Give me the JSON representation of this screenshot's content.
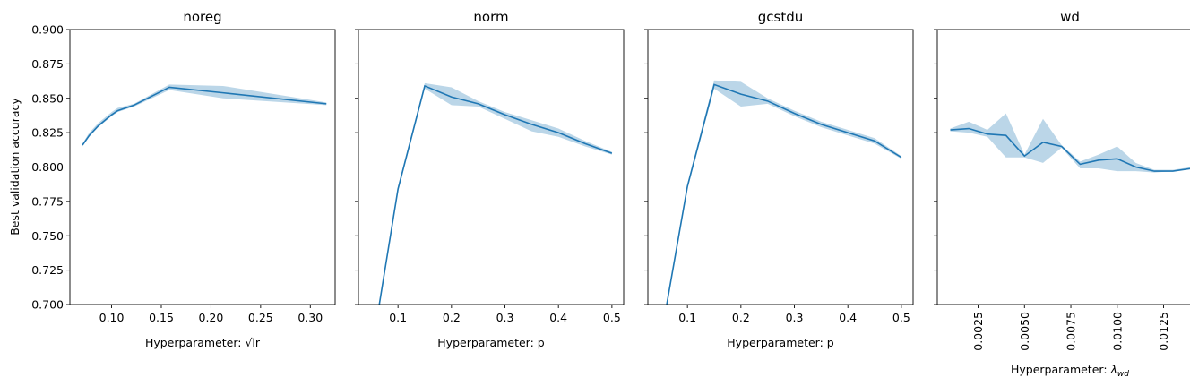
{
  "chart_data": {
    "type": "line",
    "shared_y": {
      "label": "Best validation accuracy",
      "ylim": [
        0.7,
        0.9
      ],
      "ticks": [
        "0.700",
        "0.725",
        "0.750",
        "0.775",
        "0.800",
        "0.825",
        "0.850",
        "0.875",
        "0.900"
      ]
    },
    "line_color": "#1f77b4",
    "band_color": "#1f77b4",
    "grid": false,
    "panels": [
      {
        "title": "noreg",
        "xlabel_prefix": "Hyperparameter: ",
        "xlabel_symbol": "√lr",
        "xlim": [
          0.058,
          0.325
        ],
        "x_ticks": [
          "0.10",
          "0.15",
          "0.20",
          "0.25",
          "0.30"
        ],
        "x": [
          0.0707,
          0.0775,
          0.0866,
          0.1,
          0.1061,
          0.1225,
          0.1581,
          0.2121,
          0.3162
        ],
        "mean": [
          0.816,
          0.823,
          0.83,
          0.838,
          0.841,
          0.845,
          0.858,
          0.854,
          0.846
        ],
        "lower": [
          0.815,
          0.822,
          0.829,
          0.837,
          0.84,
          0.844,
          0.856,
          0.85,
          0.845
        ],
        "upper": [
          0.817,
          0.825,
          0.832,
          0.84,
          0.843,
          0.846,
          0.86,
          0.859,
          0.847
        ]
      },
      {
        "title": "norm",
        "xlabel_prefix": "Hyperparameter: ",
        "xlabel_symbol": "p",
        "xlim": [
          0.026,
          0.522
        ],
        "x_ticks": [
          "0.1",
          "0.2",
          "0.3",
          "0.4",
          "0.5"
        ],
        "x": [
          0.05,
          0.1,
          0.15,
          0.2,
          0.25,
          0.3,
          0.35,
          0.4,
          0.45,
          0.5
        ],
        "mean": [
          0.664,
          0.784,
          0.859,
          0.851,
          0.846,
          0.838,
          0.831,
          0.825,
          0.817,
          0.81
        ],
        "lower": [
          0.662,
          0.782,
          0.857,
          0.845,
          0.844,
          0.835,
          0.826,
          0.822,
          0.815,
          0.809
        ],
        "upper": [
          0.666,
          0.786,
          0.861,
          0.858,
          0.848,
          0.84,
          0.834,
          0.828,
          0.819,
          0.811
        ]
      },
      {
        "title": "gcstdu",
        "xlabel_prefix": "Hyperparameter: ",
        "xlabel_symbol": "p",
        "xlim": [
          0.026,
          0.522
        ],
        "x_ticks": [
          "0.1",
          "0.2",
          "0.3",
          "0.4",
          "0.5"
        ],
        "x": [
          0.05,
          0.1,
          0.15,
          0.2,
          0.25,
          0.3,
          0.35,
          0.4,
          0.45,
          0.5
        ],
        "mean": [
          0.675,
          0.786,
          0.86,
          0.853,
          0.848,
          0.839,
          0.831,
          0.825,
          0.819,
          0.807
        ],
        "lower": [
          0.673,
          0.784,
          0.857,
          0.844,
          0.846,
          0.837,
          0.829,
          0.823,
          0.817,
          0.806
        ],
        "upper": [
          0.677,
          0.788,
          0.863,
          0.862,
          0.85,
          0.841,
          0.833,
          0.827,
          0.821,
          0.808
        ]
      },
      {
        "title": "wd",
        "xlabel_prefix": "Hyperparameter: ",
        "xlabel_symbol": "λ",
        "xlabel_subscript": "wd",
        "xlim": [
          0.0003,
          0.0146
        ],
        "x_ticks": [
          "0.0025",
          "0.0050",
          "0.0075",
          "0.0100",
          "0.0125"
        ],
        "x_tick_rotation": -90,
        "x": [
          0.001,
          0.002,
          0.003,
          0.004,
          0.005,
          0.006,
          0.007,
          0.008,
          0.009,
          0.01,
          0.011,
          0.012,
          0.013,
          0.014
        ],
        "mean": [
          0.827,
          0.828,
          0.824,
          0.823,
          0.808,
          0.818,
          0.815,
          0.802,
          0.805,
          0.806,
          0.8,
          0.797,
          0.797,
          0.799
        ],
        "lower": [
          0.826,
          0.825,
          0.822,
          0.807,
          0.807,
          0.803,
          0.814,
          0.799,
          0.799,
          0.797,
          0.797,
          0.796,
          0.797,
          0.799
        ],
        "upper": [
          0.828,
          0.833,
          0.827,
          0.839,
          0.809,
          0.835,
          0.816,
          0.804,
          0.809,
          0.815,
          0.803,
          0.798,
          0.798,
          0.8
        ]
      }
    ]
  }
}
